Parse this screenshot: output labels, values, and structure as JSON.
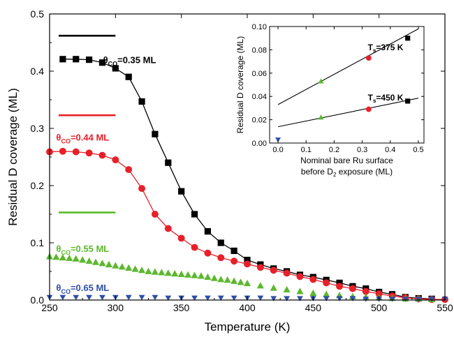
{
  "chart_data": [
    {
      "type": "scatter",
      "xlabel": "Temperature (K)",
      "ylabel": "Residual D coverage (ML)",
      "xlim": [
        250,
        550
      ],
      "ylim": [
        0,
        0.5
      ],
      "xticks": [
        250,
        300,
        350,
        400,
        450,
        500,
        550
      ],
      "yticks": [
        0.0,
        0.1,
        0.2,
        0.3,
        0.4,
        0.5
      ],
      "yticklabels": [
        "0.0",
        "0.1",
        "0.2",
        "0.3",
        "0.4",
        "0.5"
      ],
      "reference_lines": [
        {
          "series": "0.35",
          "y": 0.462,
          "x": [
            250,
            300
          ],
          "color": "#000000"
        },
        {
          "series": "0.44",
          "y": 0.323,
          "x": [
            250,
            300
          ],
          "color": "#e8202a"
        },
        {
          "series": "0.55",
          "y": 0.153,
          "x": [
            250,
            300
          ],
          "color": "#5cb82e"
        }
      ],
      "series": [
        {
          "label_prefix": "θ",
          "label_sub": "CO",
          "label_value": "=0.35 ML",
          "marker": "square",
          "color": "#000000",
          "line": true,
          "label_pos": [
            289,
            0.42
          ],
          "x": [
            260,
            270,
            280,
            290,
            300,
            310,
            320,
            330,
            340,
            350,
            360,
            370,
            380,
            390,
            400,
            410,
            420,
            430,
            440,
            450,
            460,
            470,
            480,
            490,
            500,
            510,
            520,
            530,
            540
          ],
          "y": [
            0.421,
            0.421,
            0.42,
            0.415,
            0.405,
            0.39,
            0.347,
            0.29,
            0.24,
            0.19,
            0.15,
            0.12,
            0.1,
            0.086,
            0.07,
            0.062,
            0.055,
            0.05,
            0.044,
            0.04,
            0.035,
            0.03,
            0.024,
            0.02,
            0.014,
            0.01,
            0.005,
            0.003,
            0.002
          ]
        },
        {
          "label_prefix": "θ",
          "label_sub": "CO",
          "label_value": "=0.44 ML",
          "marker": "circle",
          "color": "#e8202a",
          "line": true,
          "label_pos": [
            255,
            0.285
          ],
          "x": [
            250,
            260,
            270,
            280,
            290,
            300,
            310,
            320,
            330,
            340,
            350,
            360,
            370,
            380,
            390,
            400,
            410,
            420,
            430,
            440,
            450,
            460,
            470,
            480,
            490,
            500,
            510,
            520,
            530,
            540,
            550
          ],
          "y": [
            0.259,
            0.26,
            0.259,
            0.257,
            0.253,
            0.245,
            0.228,
            0.195,
            0.15,
            0.125,
            0.108,
            0.092,
            0.082,
            0.074,
            0.068,
            0.063,
            0.057,
            0.052,
            0.047,
            0.041,
            0.036,
            0.03,
            0.024,
            0.02,
            0.015,
            0.011,
            0.007,
            0.004,
            0.002,
            0.001,
            0.001
          ]
        },
        {
          "label_prefix": "θ",
          "label_sub": "CO",
          "label_value": "=0.55 ML",
          "marker": "triangle-up",
          "color": "#5cb82e",
          "line": false,
          "label_pos": [
            255,
            0.09
          ],
          "x": [
            250,
            255,
            260,
            265,
            270,
            275,
            280,
            285,
            290,
            295,
            300,
            305,
            310,
            315,
            320,
            325,
            330,
            335,
            340,
            345,
            350,
            355,
            360,
            365,
            370,
            375,
            380,
            385,
            390,
            395,
            400,
            410,
            420,
            430,
            440,
            450,
            460,
            470,
            480,
            490,
            500,
            510,
            520,
            530,
            540
          ],
          "y": [
            0.076,
            0.075,
            0.074,
            0.073,
            0.072,
            0.07,
            0.068,
            0.066,
            0.064,
            0.062,
            0.06,
            0.058,
            0.056,
            0.054,
            0.052,
            0.05,
            0.049,
            0.048,
            0.047,
            0.046,
            0.045,
            0.044,
            0.043,
            0.042,
            0.04,
            0.038,
            0.036,
            0.035,
            0.033,
            0.031,
            0.029,
            0.025,
            0.021,
            0.018,
            0.015,
            0.012,
            0.01,
            0.008,
            0.006,
            0.005,
            0.004,
            0.003,
            0.002,
            0.002,
            0.001
          ]
        },
        {
          "label_prefix": "θ",
          "label_sub": "CO",
          "label_value": "=0.65 ML",
          "marker": "triangle-down",
          "color": "#2f4fa6",
          "line": false,
          "label_pos": [
            255,
            0.022
          ],
          "x": [
            250,
            260,
            270,
            280,
            290,
            300,
            310,
            320,
            330,
            340,
            350,
            360,
            370,
            380,
            390,
            400,
            410,
            420,
            430,
            440,
            450,
            460,
            470,
            480,
            490,
            500,
            510,
            520,
            530,
            540,
            550
          ],
          "y": [
            0.005,
            0.005,
            0.005,
            0.005,
            0.005,
            0.005,
            0.005,
            0.005,
            0.005,
            0.004,
            0.004,
            0.004,
            0.004,
            0.004,
            0.004,
            0.004,
            0.004,
            0.003,
            0.003,
            0.003,
            0.003,
            0.003,
            0.003,
            0.003,
            0.002,
            0.002,
            0.002,
            0.002,
            0.002,
            0.002,
            0.002
          ]
        }
      ]
    },
    {
      "type": "scatter",
      "inset": true,
      "xlabel_line1": "Nominal bare Ru surface",
      "xlabel_line2_pre": "before D",
      "xlabel_line2_sub": "2",
      "xlabel_line2_post": " exposure (ML)",
      "ylabel": "Residual D coverage (ML)",
      "xlim": [
        -0.03,
        0.52
      ],
      "ylim": [
        0,
        0.1
      ],
      "xticks": [
        0.0,
        0.1,
        0.2,
        0.3,
        0.4,
        0.5
      ],
      "xticklabels": [
        "0.0",
        "0.1",
        "0.2",
        "0.3",
        "0.4",
        "0.5"
      ],
      "yticks": [
        0.0,
        0.02,
        0.04,
        0.06,
        0.08,
        0.1
      ],
      "yticklabels": [
        "0.00",
        "0.02",
        "0.04",
        "0.06",
        "0.08",
        "0.10"
      ],
      "fits": [
        {
          "label_pre": "T",
          "label_sub": "s",
          "label_post": "=375 K",
          "label_pos": [
            0.32,
            0.082
          ],
          "x": [
            0.0,
            0.5
          ],
          "y": [
            0.033,
            0.098
          ]
        },
        {
          "label_pre": "T",
          "label_sub": "s",
          "label_post": "=450 K",
          "label_pos": [
            0.32,
            0.039
          ],
          "x": [
            0.0,
            0.5
          ],
          "y": [
            0.014,
            0.0385
          ]
        }
      ],
      "points": [
        {
          "x": 0.153,
          "y": 0.053,
          "marker": "triangle-up",
          "color": "#5cb82e"
        },
        {
          "x": 0.323,
          "y": 0.073,
          "marker": "circle",
          "color": "#e8202a"
        },
        {
          "x": 0.462,
          "y": 0.09,
          "marker": "square",
          "color": "#000000"
        },
        {
          "x": 0.153,
          "y": 0.022,
          "marker": "triangle-up",
          "color": "#5cb82e"
        },
        {
          "x": 0.323,
          "y": 0.029,
          "marker": "circle",
          "color": "#e8202a"
        },
        {
          "x": 0.462,
          "y": 0.036,
          "marker": "square",
          "color": "#000000"
        },
        {
          "x": 0.0,
          "y": 0.003,
          "marker": "triangle-down",
          "color": "#2f4fa6"
        }
      ]
    }
  ]
}
